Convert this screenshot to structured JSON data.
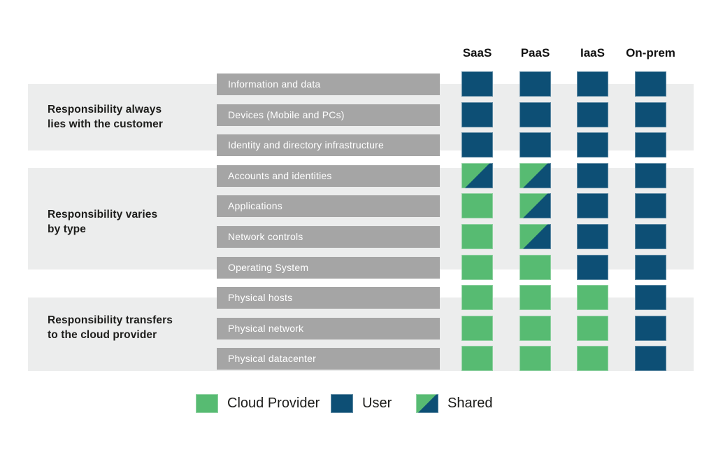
{
  "palette": {
    "provider_green": "#57BB72",
    "user_blue": "#0D4F75",
    "band_gray": "#ECEDED",
    "bar_gray": "#A5A5A5",
    "text_dark": "#1D1D1B",
    "text_white": "#FFFFFF"
  },
  "columns": [
    "SaaS",
    "PaaS",
    "IaaS",
    "On-prem"
  ],
  "groups": [
    {
      "label": "Responsibility always\nlies with the customer",
      "row_span": [
        0,
        2
      ]
    },
    {
      "label": "Responsibility varies\nby type",
      "row_span": [
        3,
        6
      ]
    },
    {
      "label": "Responsibility transfers\nto the cloud provider",
      "row_span": [
        7,
        9
      ]
    }
  ],
  "rows": [
    {
      "label": "Information and data",
      "cells": [
        "user",
        "user",
        "user",
        "user"
      ]
    },
    {
      "label": "Devices (Mobile and PCs)",
      "cells": [
        "user",
        "user",
        "user",
        "user"
      ]
    },
    {
      "label": "Identity and directory infrastructure",
      "cells": [
        "user",
        "user",
        "user",
        "user"
      ]
    },
    {
      "label": "Accounts and identities",
      "cells": [
        "shared",
        "shared",
        "user",
        "user"
      ]
    },
    {
      "label": "Applications",
      "cells": [
        "provider",
        "shared",
        "user",
        "user"
      ]
    },
    {
      "label": "Network controls",
      "cells": [
        "provider",
        "shared",
        "user",
        "user"
      ]
    },
    {
      "label": "Operating System",
      "cells": [
        "provider",
        "provider",
        "user",
        "user"
      ]
    },
    {
      "label": "Physical hosts",
      "cells": [
        "provider",
        "provider",
        "provider",
        "user"
      ]
    },
    {
      "label": "Physical network",
      "cells": [
        "provider",
        "provider",
        "provider",
        "user"
      ]
    },
    {
      "label": "Physical datacenter",
      "cells": [
        "provider",
        "provider",
        "provider",
        "user"
      ]
    }
  ],
  "legend": [
    {
      "label": "Cloud Provider",
      "type": "provider"
    },
    {
      "label": "User",
      "type": "user"
    },
    {
      "label": "Shared",
      "type": "shared"
    }
  ]
}
